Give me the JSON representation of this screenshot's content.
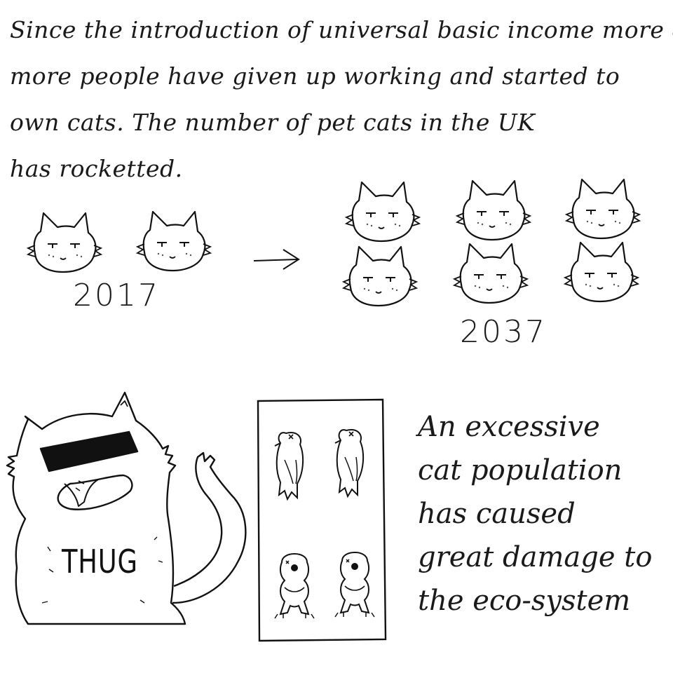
{
  "intro_text": [
    "Since the introduction of universal basic income more &",
    "more people have given up working and started to",
    "own cats.  The number of pet cats in the UK",
    "has rocketted."
  ],
  "years": {
    "before": "2017",
    "after": "2037"
  },
  "cat_counts": {
    "before": 2,
    "after": 6
  },
  "thug_label": "THUG",
  "caption": [
    "An excessive",
    "cat population",
    "has caused",
    "great damage to",
    "the eco-system"
  ],
  "icons": {
    "cat_face": "cat-face-icon",
    "arrow": "arrow-right-icon",
    "thug_cat": "thug-cat-illustration",
    "dead_bird": "dead-bird-icon",
    "dead_frog": "dead-frog-icon"
  }
}
